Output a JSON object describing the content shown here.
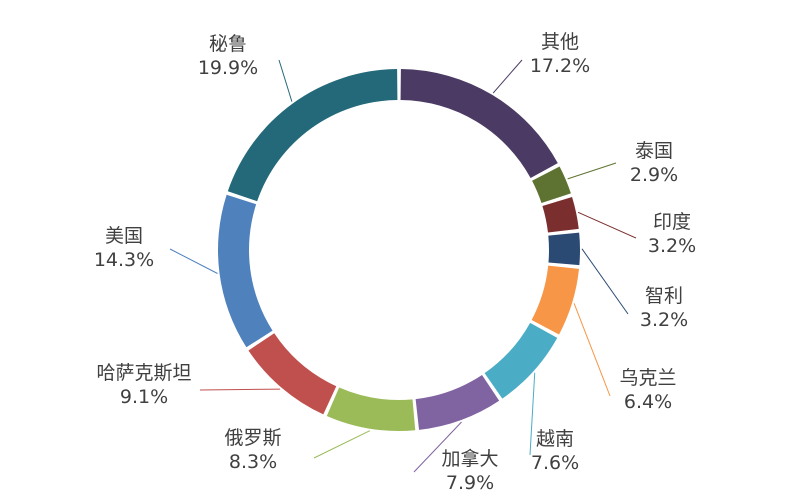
{
  "chart_data": {
    "type": "pie",
    "variant": "donut",
    "title": "",
    "legend": "none",
    "slices": [
      {
        "label": "其他",
        "value": 17.2,
        "value_label": "17.2%",
        "color": "#4b3a63"
      },
      {
        "label": "泰国",
        "value": 2.9,
        "value_label": "2.9%",
        "color": "#5e7331"
      },
      {
        "label": "印度",
        "value": 3.2,
        "value_label": "3.2%",
        "color": "#7b2e2e"
      },
      {
        "label": "智利",
        "value": 3.2,
        "value_label": "3.2%",
        "color": "#2a4a74"
      },
      {
        "label": "乌克兰",
        "value": 6.4,
        "value_label": "6.4%",
        "color": "#f79646"
      },
      {
        "label": "越南",
        "value": 7.6,
        "value_label": "7.6%",
        "color": "#4bacc6"
      },
      {
        "label": "加拿大",
        "value": 7.9,
        "value_label": "7.9%",
        "color": "#8064a2"
      },
      {
        "label": "俄罗斯",
        "value": 8.3,
        "value_label": "8.3%",
        "color": "#9bbb59"
      },
      {
        "label": "哈萨克斯坦",
        "value": 9.1,
        "value_label": "9.1%",
        "color": "#c0504d"
      },
      {
        "label": "美国",
        "value": 14.3,
        "value_label": "14.3%",
        "color": "#4f81bd"
      },
      {
        "label": "秘鲁",
        "value": 19.9,
        "value_label": "19.9%",
        "color": "#23697a"
      }
    ]
  }
}
